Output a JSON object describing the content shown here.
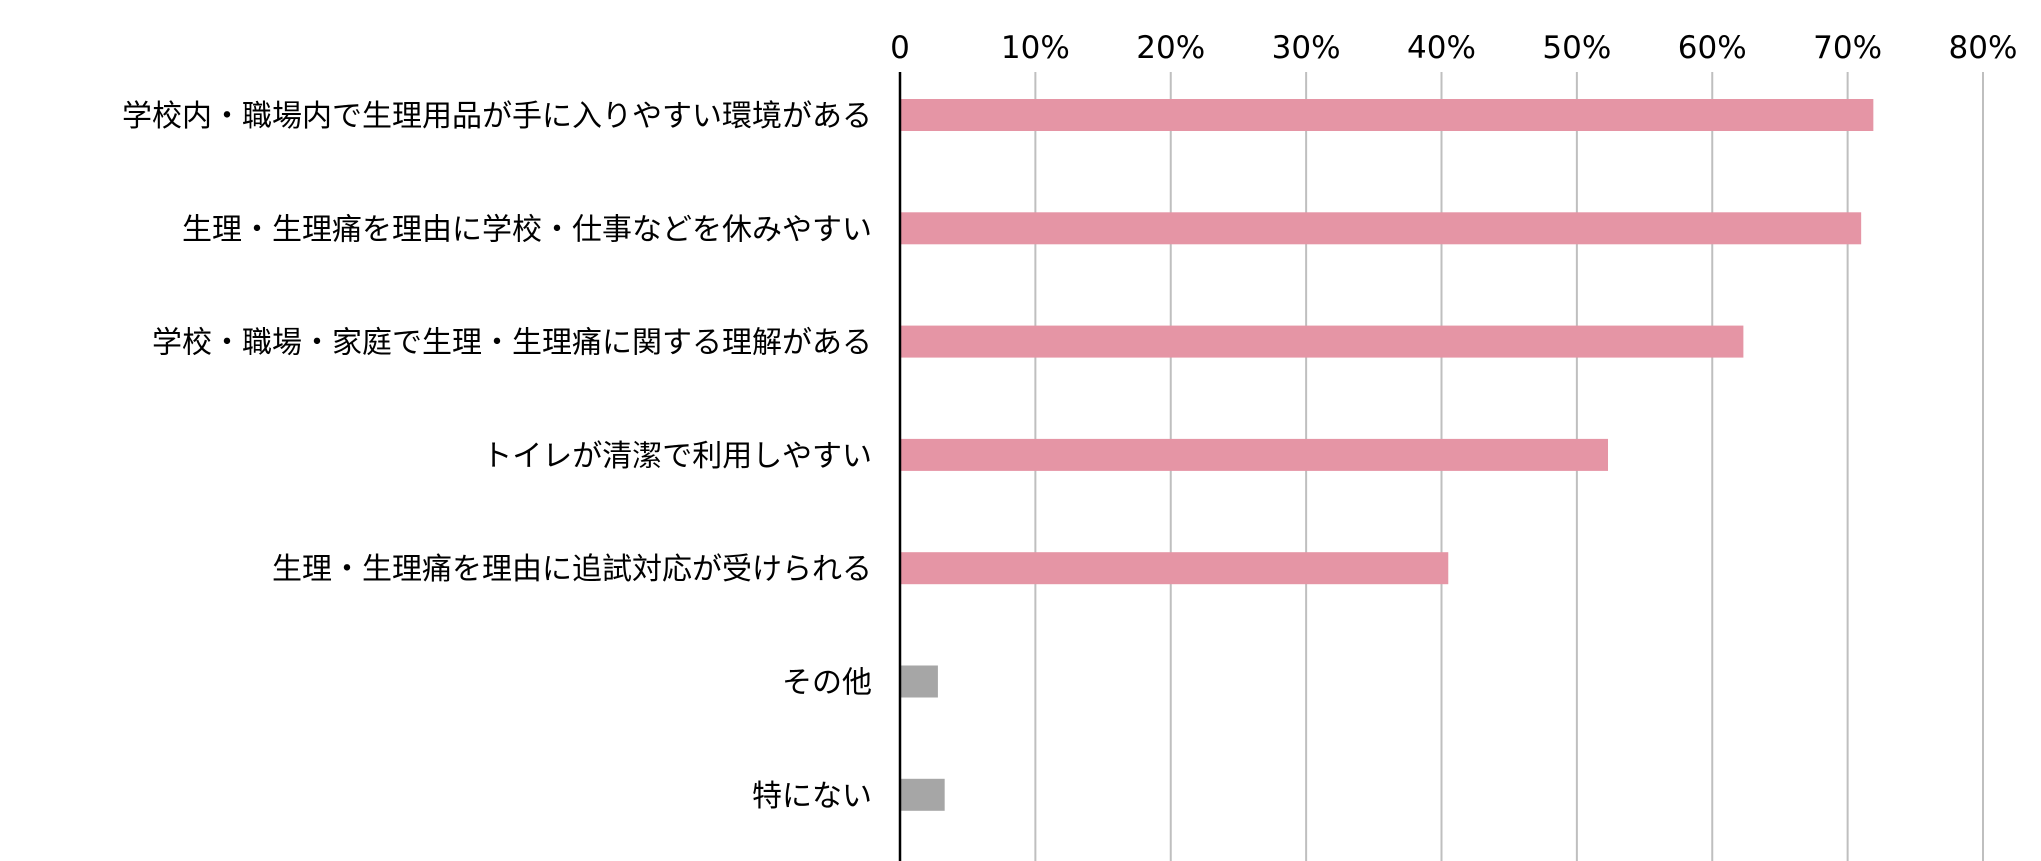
{
  "chart_data": {
    "type": "bar",
    "orientation": "horizontal",
    "title": "",
    "xlabel": "",
    "ylabel": "",
    "xlim": [
      0,
      80
    ],
    "x_ticks": [
      {
        "value": 0,
        "label": "0"
      },
      {
        "value": 10,
        "label": "10%"
      },
      {
        "value": 20,
        "label": "20%"
      },
      {
        "value": 30,
        "label": "30%"
      },
      {
        "value": 40,
        "label": "40%"
      },
      {
        "value": 50,
        "label": "50%"
      },
      {
        "value": 60,
        "label": "60%"
      },
      {
        "value": 70,
        "label": "70%"
      },
      {
        "value": 80,
        "label": "80%"
      }
    ],
    "x_axis_position": "top",
    "grid": "vertical",
    "legend": "none",
    "colors": {
      "main": "#e595a5",
      "other": "#a6a6a6",
      "grid": "#bfbfbf",
      "axis": "#000000"
    },
    "categories": [
      "学校内・職場内で生理用品が手に入りやすい環境がある",
      "生理・生理痛を理由に学校・仕事などを休みやすい",
      "学校・職場・家庭で生理・生理痛に関する理解がある",
      "トイレが清潔で利用しやすい",
      "生理・生理痛を理由に追試対応が受けられる",
      "その他",
      "特にない"
    ],
    "values": [
      71.9,
      71.0,
      62.3,
      52.3,
      40.5,
      2.8,
      3.3
    ],
    "bar_colors": [
      "main",
      "main",
      "main",
      "main",
      "main",
      "other",
      "other"
    ]
  }
}
